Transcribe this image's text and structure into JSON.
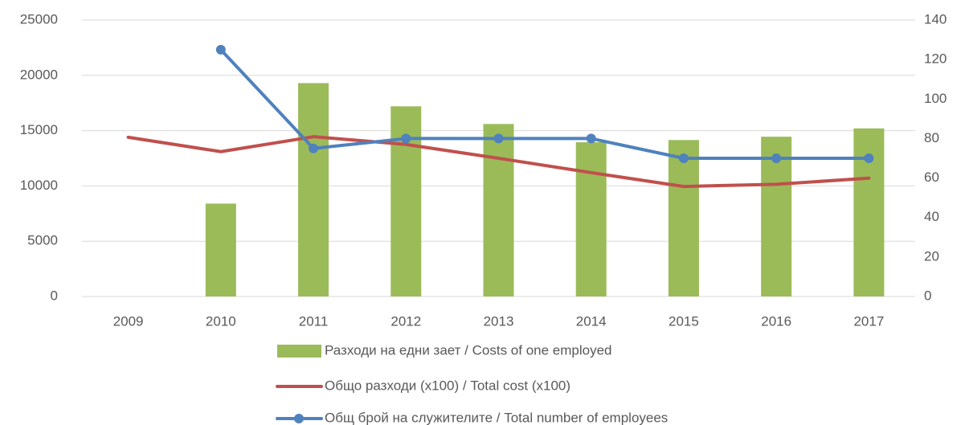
{
  "chart_data": {
    "type": "combo",
    "categories": [
      "2009",
      "2010",
      "2011",
      "2012",
      "2013",
      "2014",
      "2015",
      "2016",
      "2017"
    ],
    "series": [
      {
        "name": "Разходи на едни зает / Costs of one employed",
        "type": "bar",
        "color": "#9bbb59",
        "axis": "y",
        "values": [
          null,
          8400,
          19300,
          17200,
          15600,
          13950,
          14150,
          14450,
          15200
        ]
      },
      {
        "name": "Общо разходи (x100) / Total cost (x100)",
        "type": "line",
        "color": "#c0504d",
        "axis": "y",
        "values": [
          14400,
          13100,
          14450,
          13750,
          12500,
          11200,
          9950,
          10150,
          10700
        ]
      },
      {
        "name": "Общ брой на служителите / Total number of employees",
        "type": "line",
        "marker": true,
        "color": "#4f81bd",
        "axis": "y2",
        "values": [
          null,
          125,
          75,
          80,
          80,
          80,
          70,
          70,
          70
        ]
      }
    ],
    "ylim": [
      0,
      25000
    ],
    "yticks": [
      0,
      5000,
      10000,
      15000,
      20000,
      25000
    ],
    "y2lim": [
      0,
      140
    ],
    "y2ticks": [
      0,
      20,
      40,
      60,
      80,
      100,
      120,
      140
    ],
    "grid": true,
    "legend": "bottom"
  }
}
